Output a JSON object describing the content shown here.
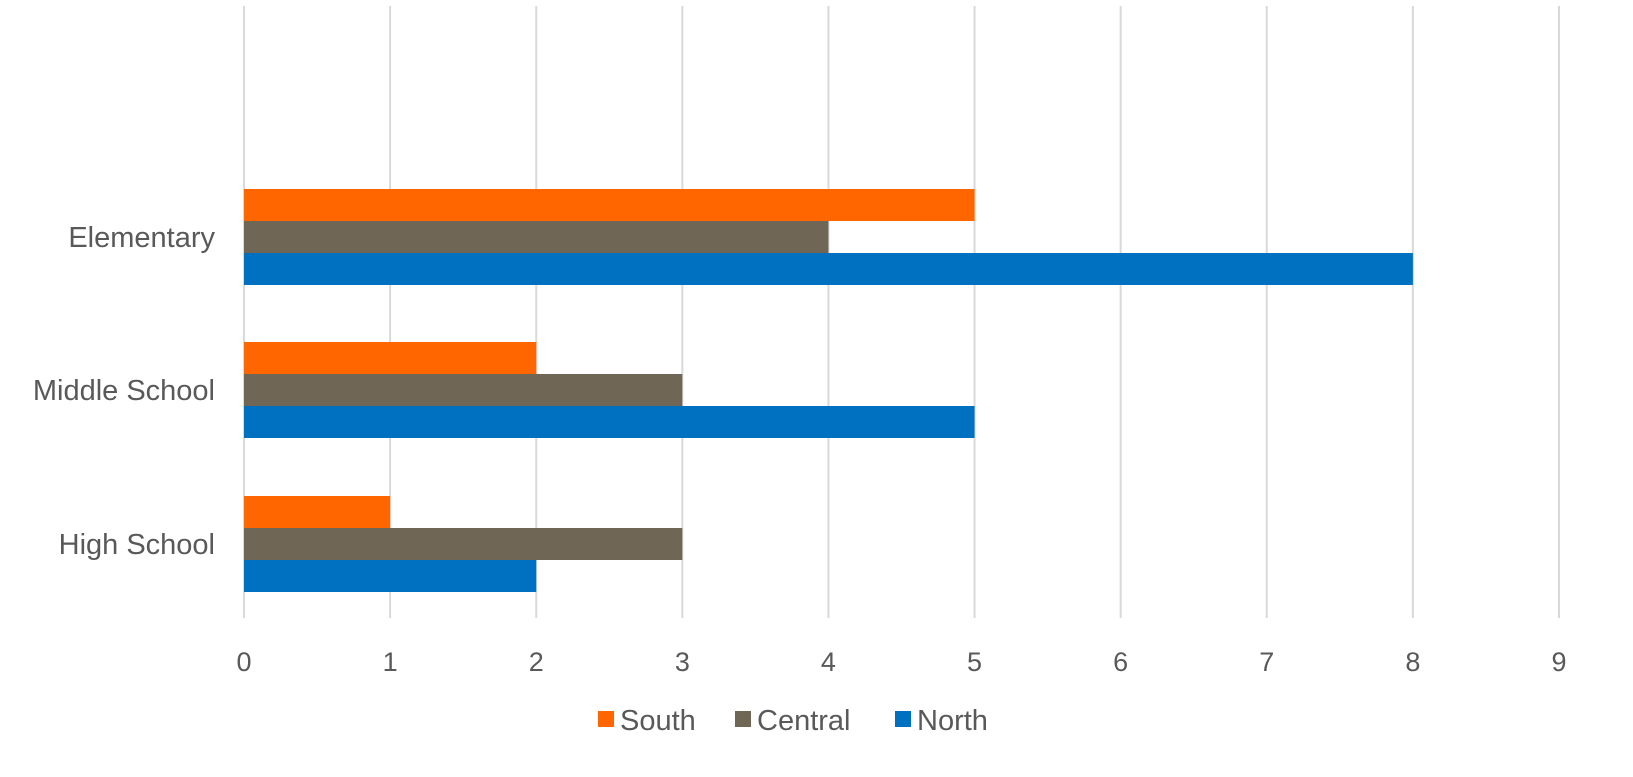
{
  "chart_data": {
    "type": "bar",
    "orientation": "horizontal",
    "title": "",
    "xlabel": "",
    "ylabel": "",
    "categories": [
      "High School",
      "Middle School",
      "Elementary"
    ],
    "series": [
      {
        "name": "North",
        "color": "#0070C0",
        "values": [
          2,
          5,
          8
        ]
      },
      {
        "name": "Central",
        "color": "#706656",
        "values": [
          3,
          3,
          4
        ]
      },
      {
        "name": "South",
        "color": "#FF6600",
        "values": [
          1,
          2,
          5
        ]
      }
    ],
    "xlim": [
      0,
      9
    ],
    "x_ticks": [
      0,
      1,
      2,
      3,
      4,
      5,
      6,
      7,
      8,
      9
    ],
    "grid": true,
    "gridline_color": "#d9d9d9",
    "text_color": "#595959",
    "legend_position": "bottom",
    "legend_order": [
      "South",
      "Central",
      "North"
    ]
  }
}
